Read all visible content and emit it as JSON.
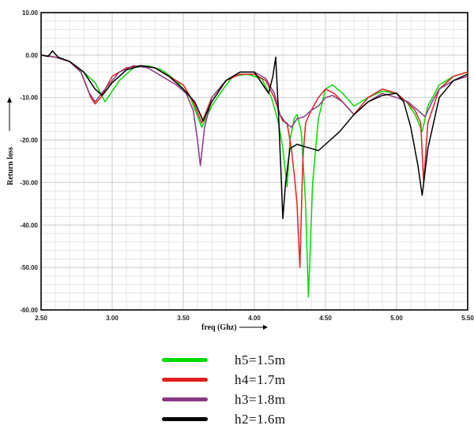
{
  "chart_data": {
    "type": "line",
    "title": "",
    "xlabel": "freq (Ghz)",
    "ylabel": "Return loss",
    "xlim": [
      2.5,
      5.5
    ],
    "ylim": [
      -60,
      10
    ],
    "grid": true,
    "legend_position": "bottom",
    "x_ticks": [
      "2.50",
      "3.00",
      "3.50",
      "4.00",
      "4.50",
      "5.00",
      "5.50"
    ],
    "y_ticks": [
      "10.00",
      "0.00",
      "-10.00",
      "-20.00",
      "-30.00",
      "-40.00",
      "-50.00",
      "-60.00"
    ],
    "series": [
      {
        "name": "h5=1.5m",
        "color": "#00dd00",
        "x": [
          2.5,
          2.6,
          2.7,
          2.8,
          2.88,
          2.95,
          3.05,
          3.15,
          3.25,
          3.35,
          3.45,
          3.55,
          3.63,
          3.7,
          3.78,
          3.85,
          3.95,
          4.05,
          4.12,
          4.17,
          4.2,
          4.23,
          4.25,
          4.28,
          4.3,
          4.33,
          4.36,
          4.38,
          4.41,
          4.45,
          4.5,
          4.55,
          4.62,
          4.7,
          4.8,
          4.9,
          5.0,
          5.07,
          5.13,
          5.18,
          5.22,
          5.3,
          5.4,
          5.5
        ],
        "y": [
          0,
          -0.5,
          -1.5,
          -4,
          -6.5,
          -11,
          -6,
          -3,
          -2.5,
          -3.5,
          -6,
          -10,
          -17,
          -12,
          -8,
          -5,
          -4.5,
          -5.5,
          -10,
          -16,
          -22,
          -31,
          -20,
          -15,
          -14,
          -18,
          -35,
          -57,
          -30,
          -15,
          -8,
          -7,
          -9,
          -12,
          -10,
          -8.5,
          -9,
          -11,
          -14,
          -18,
          -12,
          -7,
          -5,
          -4
        ]
      },
      {
        "name": "h4=1.7m",
        "color": "#e02020",
        "x": [
          2.5,
          2.6,
          2.7,
          2.78,
          2.85,
          2.88,
          2.92,
          3.0,
          3.1,
          3.2,
          3.3,
          3.4,
          3.5,
          3.57,
          3.63,
          3.7,
          3.8,
          3.9,
          4.0,
          4.08,
          4.14,
          4.18,
          4.2,
          4.23,
          4.26,
          4.28,
          4.3,
          4.32,
          4.34,
          4.36,
          4.4,
          4.45,
          4.5,
          4.56,
          4.62,
          4.7,
          4.8,
          4.9,
          5.0,
          5.07,
          5.13,
          5.17,
          5.19,
          5.22,
          5.3,
          5.4,
          5.5
        ],
        "y": [
          0,
          -0.5,
          -1.5,
          -4,
          -10,
          -11.5,
          -10,
          -5,
          -3,
          -2.5,
          -3,
          -5,
          -7,
          -11,
          -16,
          -10,
          -6,
          -4.5,
          -4.5,
          -6,
          -10,
          -14,
          -15.5,
          -16,
          -22,
          -28,
          -35,
          -50,
          -25,
          -16,
          -13,
          -10,
          -8,
          -9,
          -11,
          -14,
          -10,
          -8,
          -9,
          -11,
          -13,
          -16,
          -30,
          -16,
          -8,
          -5,
          -4
        ]
      },
      {
        "name": "h3=1.8m",
        "color": "#8a3a80",
        "x": [
          2.5,
          2.6,
          2.7,
          2.78,
          2.84,
          2.88,
          2.95,
          3.05,
          3.15,
          3.25,
          3.35,
          3.45,
          3.52,
          3.57,
          3.6,
          3.62,
          3.65,
          3.7,
          3.8,
          3.9,
          4.0,
          4.08,
          4.14,
          4.18,
          4.22,
          4.26,
          4.3,
          4.35,
          4.4,
          4.45,
          4.5,
          4.55,
          4.62,
          4.7,
          4.8,
          4.9,
          5.0,
          5.08,
          5.15,
          5.2,
          5.25,
          5.3,
          5.4,
          5.5
        ],
        "y": [
          0,
          -0.5,
          -1.5,
          -4,
          -9,
          -11,
          -8,
          -4,
          -2.5,
          -3,
          -5,
          -7,
          -9,
          -13,
          -20,
          -26,
          -17,
          -10,
          -6,
          -4,
          -4,
          -5.5,
          -9,
          -14,
          -16,
          -17,
          -15,
          -14.5,
          -13,
          -12,
          -10,
          -9.5,
          -11,
          -14,
          -11,
          -9,
          -10,
          -11,
          -13,
          -14.5,
          -11,
          -8,
          -6,
          -5
        ]
      },
      {
        "name": "h2=1.6m",
        "color": "#000000",
        "x": [
          2.5,
          2.55,
          2.58,
          2.62,
          2.7,
          2.8,
          2.88,
          2.93,
          3.0,
          3.1,
          3.2,
          3.3,
          3.4,
          3.5,
          3.58,
          3.64,
          3.7,
          3.8,
          3.9,
          4.0,
          4.06,
          4.1,
          4.13,
          4.15,
          4.17,
          4.19,
          4.2,
          4.22,
          4.25,
          4.3,
          4.35,
          4.4,
          4.45,
          4.5,
          4.6,
          4.7,
          4.8,
          4.9,
          5.0,
          5.05,
          5.1,
          5.15,
          5.18,
          5.22,
          5.3,
          5.4,
          5.5
        ],
        "y": [
          0,
          -0.3,
          1,
          -0.5,
          -1.5,
          -4,
          -8,
          -9.5,
          -6.5,
          -3.5,
          -2.5,
          -3,
          -5,
          -8,
          -11,
          -15.5,
          -11,
          -6,
          -4,
          -4,
          -7,
          -9,
          -5,
          -0.5,
          -14,
          -30,
          -38.5,
          -30,
          -22,
          -21,
          -21.5,
          -22,
          -22.5,
          -21,
          -18,
          -14,
          -11,
          -9.5,
          -9,
          -11,
          -17,
          -26,
          -33,
          -22,
          -10,
          -6,
          -4.5
        ]
      }
    ]
  }
}
